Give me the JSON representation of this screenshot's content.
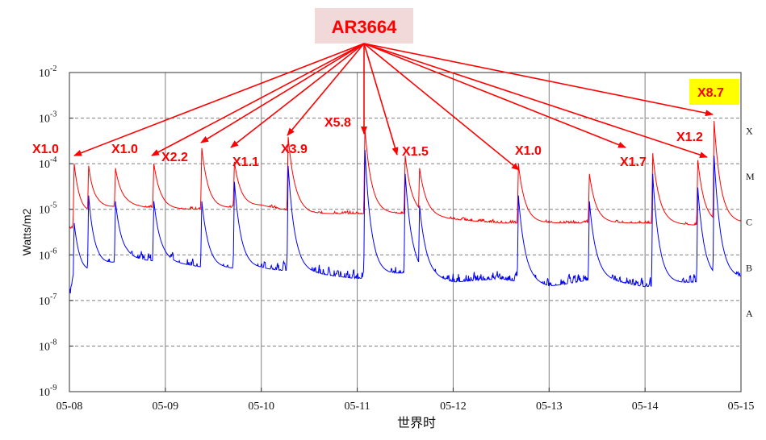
{
  "chart_data": {
    "type": "line",
    "title": "",
    "region_label": "AR3664",
    "ylabel": "Watts/m2",
    "xlabel": "世界时",
    "y_scale": "log",
    "ylim": [
      1e-09,
      0.01
    ],
    "y_ticks": [
      {
        "base": "10",
        "exp": "-9"
      },
      {
        "base": "10",
        "exp": "-8"
      },
      {
        "base": "10",
        "exp": "-7"
      },
      {
        "base": "10",
        "exp": "-6"
      },
      {
        "base": "10",
        "exp": "-5"
      },
      {
        "base": "10",
        "exp": "-4"
      },
      {
        "base": "10",
        "exp": "-3"
      },
      {
        "base": "10",
        "exp": "-2"
      }
    ],
    "x_ticks": [
      "05-08",
      "05-09",
      "05-10",
      "05-11",
      "05-12",
      "05-13",
      "05-14",
      "05-15"
    ],
    "class_labels": [
      {
        "label": "A",
        "level": -7
      },
      {
        "label": "B",
        "level": -6
      },
      {
        "label": "C",
        "level": -5
      },
      {
        "label": "M",
        "level": -4
      },
      {
        "label": "X",
        "level": -3
      }
    ],
    "grid": true,
    "series": [
      {
        "color": "#ff0000",
        "baseline": [
          [
            0,
            4e-06
          ],
          [
            0.3,
            1e-05
          ],
          [
            0.6,
            1.2e-05
          ],
          [
            1.0,
            1e-05
          ],
          [
            1.5,
            1e-05
          ],
          [
            2.0,
            1.2e-05
          ],
          [
            2.5,
            8e-06
          ],
          [
            3.0,
            8e-06
          ],
          [
            3.5,
            8e-06
          ],
          [
            4.0,
            6e-06
          ],
          [
            4.5,
            5e-06
          ],
          [
            5.0,
            5e-06
          ],
          [
            5.5,
            5e-06
          ],
          [
            6.0,
            5e-06
          ],
          [
            6.5,
            4.5e-06
          ],
          [
            6.9,
            5e-06
          ],
          [
            7.0,
            5e-06
          ]
        ],
        "peaks": [
          [
            0.05,
            0.0001
          ],
          [
            0.2,
            9e-05
          ],
          [
            0.48,
            8e-05
          ],
          [
            0.88,
            0.0001
          ],
          [
            1.38,
            0.00022
          ],
          [
            1.72,
            0.00011
          ],
          [
            2.28,
            0.00039
          ],
          [
            3.08,
            0.00058
          ],
          [
            3.5,
            0.00015
          ],
          [
            3.65,
            8e-05
          ],
          [
            4.68,
            0.0001
          ],
          [
            5.42,
            6e-05
          ],
          [
            6.08,
            0.00017
          ],
          [
            6.55,
            0.00012
          ],
          [
            6.72,
            0.00087
          ]
        ]
      },
      {
        "color": "#0000ff",
        "baseline": [
          [
            0,
            2e-07
          ],
          [
            0.3,
            5e-07
          ],
          [
            0.6,
            8e-07
          ],
          [
            1.0,
            7e-07
          ],
          [
            1.5,
            5e-07
          ],
          [
            2.0,
            5e-07
          ],
          [
            2.5,
            4e-07
          ],
          [
            3.0,
            3e-07
          ],
          [
            3.5,
            4e-07
          ],
          [
            4.0,
            2.5e-07
          ],
          [
            4.5,
            3e-07
          ],
          [
            5.0,
            2e-07
          ],
          [
            5.5,
            3e-07
          ],
          [
            6.0,
            2e-07
          ],
          [
            6.5,
            2.5e-07
          ],
          [
            6.9,
            3e-07
          ],
          [
            7.0,
            3e-07
          ]
        ],
        "peaks": [
          [
            0.05,
            5e-06
          ],
          [
            0.2,
            2e-05
          ],
          [
            0.48,
            1.5e-05
          ],
          [
            0.88,
            1.5e-05
          ],
          [
            1.38,
            1.5e-05
          ],
          [
            1.72,
            4e-05
          ],
          [
            2.28,
            9e-05
          ],
          [
            3.08,
            0.0002
          ],
          [
            3.5,
            6e-05
          ],
          [
            3.65,
            1.2e-05
          ],
          [
            4.68,
            2e-05
          ],
          [
            5.42,
            1.5e-05
          ],
          [
            6.08,
            6e-05
          ],
          [
            6.55,
            3e-05
          ],
          [
            6.72,
            0.00015
          ]
        ]
      }
    ],
    "flares": [
      {
        "label": "X1.0",
        "day": 0.05,
        "flux": 0.0001,
        "highlight": false
      },
      {
        "label": "X1.0",
        "day": 0.88,
        "flux": 0.0001,
        "highlight": false
      },
      {
        "label": "X2.2",
        "day": 1.38,
        "flux": 0.00022,
        "highlight": false
      },
      {
        "label": "X1.1",
        "day": 1.72,
        "flux": 0.00011,
        "highlight": false
      },
      {
        "label": "X3.9",
        "day": 2.28,
        "flux": 0.00039,
        "highlight": false
      },
      {
        "label": "X5.8",
        "day": 3.08,
        "flux": 0.00058,
        "highlight": false
      },
      {
        "label": "X1.5",
        "day": 3.5,
        "flux": 0.00015,
        "highlight": false
      },
      {
        "label": "X1.0",
        "day": 4.68,
        "flux": 0.0001,
        "highlight": false
      },
      {
        "label": "X1.7",
        "day": 6.08,
        "flux": 0.00017,
        "highlight": false
      },
      {
        "label": "X1.2",
        "day": 6.55,
        "flux": 0.00012,
        "highlight": false
      },
      {
        "label": "X8.7",
        "day": 6.72,
        "flux": 0.00087,
        "highlight": true
      }
    ],
    "colors": {
      "annotation": "#ff0000",
      "region_box": "#f2d9d9",
      "highlight_box": "#ffff00",
      "grid": "#7f7f7f"
    }
  }
}
